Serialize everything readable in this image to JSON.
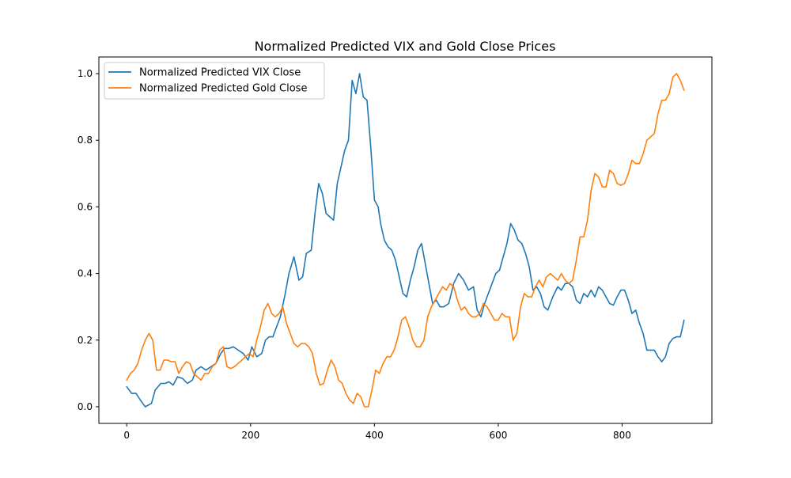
{
  "chart_data": {
    "type": "line",
    "title": "Normalized Predicted VIX and Gold Close Prices",
    "xlabel": "",
    "ylabel": "",
    "xlim": [
      -45,
      945
    ],
    "ylim": [
      -0.05,
      1.05
    ],
    "x_ticks": [
      0,
      200,
      400,
      600,
      800
    ],
    "y_ticks": [
      0.0,
      0.2,
      0.4,
      0.6,
      0.8,
      1.0
    ],
    "x_tick_labels": [
      "0",
      "200",
      "400",
      "600",
      "800"
    ],
    "y_tick_labels": [
      "0.0",
      "0.2",
      "0.4",
      "0.6",
      "0.8",
      "1.0"
    ],
    "grid": false,
    "legend_position": "top-left",
    "series": [
      {
        "name": "Normalized Predicted VIX Close",
        "color": "#1f77b4",
        "points": [
          [
            0,
            0.06
          ],
          [
            8,
            0.04
          ],
          [
            15,
            0.04
          ],
          [
            22,
            0.02
          ],
          [
            30,
            0.0
          ],
          [
            40,
            0.01
          ],
          [
            46,
            0.05
          ],
          [
            55,
            0.07
          ],
          [
            62,
            0.07
          ],
          [
            68,
            0.075
          ],
          [
            75,
            0.065
          ],
          [
            82,
            0.09
          ],
          [
            90,
            0.085
          ],
          [
            98,
            0.07
          ],
          [
            106,
            0.08
          ],
          [
            112,
            0.11
          ],
          [
            120,
            0.12
          ],
          [
            128,
            0.11
          ],
          [
            136,
            0.12
          ],
          [
            144,
            0.13
          ],
          [
            152,
            0.16
          ],
          [
            158,
            0.175
          ],
          [
            165,
            0.175
          ],
          [
            172,
            0.18
          ],
          [
            180,
            0.17
          ],
          [
            188,
            0.16
          ],
          [
            196,
            0.14
          ],
          [
            202,
            0.18
          ],
          [
            210,
            0.15
          ],
          [
            218,
            0.16
          ],
          [
            224,
            0.2
          ],
          [
            230,
            0.21
          ],
          [
            236,
            0.21
          ],
          [
            242,
            0.24
          ],
          [
            248,
            0.27
          ],
          [
            255,
            0.33
          ],
          [
            262,
            0.4
          ],
          [
            270,
            0.45
          ],
          [
            278,
            0.38
          ],
          [
            284,
            0.39
          ],
          [
            290,
            0.46
          ],
          [
            298,
            0.47
          ],
          [
            304,
            0.58
          ],
          [
            310,
            0.67
          ],
          [
            316,
            0.64
          ],
          [
            322,
            0.58
          ],
          [
            328,
            0.57
          ],
          [
            334,
            0.56
          ],
          [
            340,
            0.67
          ],
          [
            346,
            0.72
          ],
          [
            352,
            0.77
          ],
          [
            358,
            0.8
          ],
          [
            364,
            0.98
          ],
          [
            370,
            0.94
          ],
          [
            376,
            1.0
          ],
          [
            382,
            0.93
          ],
          [
            388,
            0.92
          ],
          [
            394,
            0.78
          ],
          [
            400,
            0.62
          ],
          [
            406,
            0.6
          ],
          [
            410,
            0.55
          ],
          [
            416,
            0.5
          ],
          [
            422,
            0.48
          ],
          [
            428,
            0.47
          ],
          [
            434,
            0.44
          ],
          [
            440,
            0.39
          ],
          [
            446,
            0.34
          ],
          [
            452,
            0.33
          ],
          [
            458,
            0.38
          ],
          [
            464,
            0.42
          ],
          [
            470,
            0.47
          ],
          [
            476,
            0.49
          ],
          [
            482,
            0.43
          ],
          [
            488,
            0.37
          ],
          [
            494,
            0.31
          ],
          [
            500,
            0.32
          ],
          [
            506,
            0.3
          ],
          [
            512,
            0.3
          ],
          [
            520,
            0.31
          ],
          [
            528,
            0.37
          ],
          [
            536,
            0.4
          ],
          [
            544,
            0.38
          ],
          [
            552,
            0.35
          ],
          [
            560,
            0.36
          ],
          [
            566,
            0.29
          ],
          [
            572,
            0.27
          ],
          [
            578,
            0.31
          ],
          [
            584,
            0.34
          ],
          [
            590,
            0.37
          ],
          [
            596,
            0.4
          ],
          [
            602,
            0.41
          ],
          [
            608,
            0.45
          ],
          [
            614,
            0.49
          ],
          [
            620,
            0.55
          ],
          [
            626,
            0.53
          ],
          [
            632,
            0.5
          ],
          [
            638,
            0.49
          ],
          [
            644,
            0.46
          ],
          [
            650,
            0.42
          ],
          [
            656,
            0.35
          ],
          [
            662,
            0.36
          ],
          [
            668,
            0.34
          ],
          [
            674,
            0.3
          ],
          [
            680,
            0.29
          ],
          [
            688,
            0.33
          ],
          [
            696,
            0.36
          ],
          [
            702,
            0.35
          ],
          [
            708,
            0.37
          ],
          [
            714,
            0.37
          ],
          [
            720,
            0.36
          ],
          [
            726,
            0.32
          ],
          [
            732,
            0.31
          ],
          [
            738,
            0.34
          ],
          [
            744,
            0.33
          ],
          [
            750,
            0.35
          ],
          [
            756,
            0.33
          ],
          [
            762,
            0.36
          ],
          [
            768,
            0.35
          ],
          [
            774,
            0.33
          ],
          [
            780,
            0.31
          ],
          [
            786,
            0.305
          ],
          [
            792,
            0.33
          ],
          [
            798,
            0.35
          ],
          [
            804,
            0.35
          ],
          [
            810,
            0.32
          ],
          [
            816,
            0.28
          ],
          [
            822,
            0.29
          ],
          [
            828,
            0.25
          ],
          [
            834,
            0.22
          ],
          [
            840,
            0.17
          ],
          [
            846,
            0.17
          ],
          [
            852,
            0.17
          ],
          [
            858,
            0.15
          ],
          [
            864,
            0.135
          ],
          [
            870,
            0.15
          ],
          [
            876,
            0.19
          ],
          [
            882,
            0.205
          ],
          [
            888,
            0.21
          ],
          [
            894,
            0.21
          ],
          [
            900,
            0.26
          ]
        ]
      },
      {
        "name": "Normalized Predicted Gold Close",
        "color": "#ff7f0e",
        "points": [
          [
            0,
            0.08
          ],
          [
            6,
            0.1
          ],
          [
            12,
            0.11
          ],
          [
            18,
            0.13
          ],
          [
            24,
            0.17
          ],
          [
            30,
            0.2
          ],
          [
            36,
            0.22
          ],
          [
            42,
            0.2
          ],
          [
            48,
            0.11
          ],
          [
            54,
            0.11
          ],
          [
            60,
            0.14
          ],
          [
            66,
            0.14
          ],
          [
            72,
            0.135
          ],
          [
            78,
            0.135
          ],
          [
            84,
            0.1
          ],
          [
            90,
            0.12
          ],
          [
            96,
            0.135
          ],
          [
            102,
            0.13
          ],
          [
            108,
            0.1
          ],
          [
            114,
            0.09
          ],
          [
            120,
            0.08
          ],
          [
            126,
            0.1
          ],
          [
            132,
            0.1
          ],
          [
            138,
            0.12
          ],
          [
            144,
            0.13
          ],
          [
            150,
            0.17
          ],
          [
            156,
            0.18
          ],
          [
            162,
            0.12
          ],
          [
            168,
            0.115
          ],
          [
            174,
            0.12
          ],
          [
            180,
            0.13
          ],
          [
            186,
            0.14
          ],
          [
            192,
            0.15
          ],
          [
            198,
            0.16
          ],
          [
            204,
            0.15
          ],
          [
            210,
            0.2
          ],
          [
            216,
            0.24
          ],
          [
            222,
            0.29
          ],
          [
            228,
            0.31
          ],
          [
            234,
            0.28
          ],
          [
            240,
            0.27
          ],
          [
            246,
            0.28
          ],
          [
            252,
            0.3
          ],
          [
            258,
            0.25
          ],
          [
            264,
            0.22
          ],
          [
            270,
            0.19
          ],
          [
            276,
            0.18
          ],
          [
            282,
            0.19
          ],
          [
            288,
            0.19
          ],
          [
            294,
            0.18
          ],
          [
            300,
            0.16
          ],
          [
            306,
            0.1
          ],
          [
            312,
            0.065
          ],
          [
            318,
            0.07
          ],
          [
            324,
            0.11
          ],
          [
            330,
            0.14
          ],
          [
            336,
            0.12
          ],
          [
            342,
            0.08
          ],
          [
            348,
            0.07
          ],
          [
            354,
            0.04
          ],
          [
            360,
            0.02
          ],
          [
            366,
            0.01
          ],
          [
            372,
            0.04
          ],
          [
            378,
            0.03
          ],
          [
            384,
            0.0
          ],
          [
            390,
            0.0
          ],
          [
            396,
            0.05
          ],
          [
            402,
            0.11
          ],
          [
            408,
            0.1
          ],
          [
            414,
            0.13
          ],
          [
            420,
            0.15
          ],
          [
            426,
            0.15
          ],
          [
            432,
            0.17
          ],
          [
            438,
            0.21
          ],
          [
            444,
            0.26
          ],
          [
            450,
            0.27
          ],
          [
            456,
            0.24
          ],
          [
            462,
            0.2
          ],
          [
            468,
            0.18
          ],
          [
            474,
            0.18
          ],
          [
            480,
            0.2
          ],
          [
            486,
            0.27
          ],
          [
            492,
            0.3
          ],
          [
            498,
            0.32
          ],
          [
            504,
            0.34
          ],
          [
            510,
            0.36
          ],
          [
            516,
            0.35
          ],
          [
            522,
            0.37
          ],
          [
            528,
            0.36
          ],
          [
            534,
            0.32
          ],
          [
            540,
            0.29
          ],
          [
            546,
            0.3
          ],
          [
            552,
            0.28
          ],
          [
            558,
            0.27
          ],
          [
            564,
            0.27
          ],
          [
            570,
            0.28
          ],
          [
            576,
            0.31
          ],
          [
            582,
            0.3
          ],
          [
            588,
            0.28
          ],
          [
            594,
            0.26
          ],
          [
            600,
            0.26
          ],
          [
            606,
            0.28
          ],
          [
            612,
            0.27
          ],
          [
            618,
            0.27
          ],
          [
            624,
            0.2
          ],
          [
            630,
            0.22
          ],
          [
            636,
            0.3
          ],
          [
            642,
            0.34
          ],
          [
            648,
            0.33
          ],
          [
            654,
            0.33
          ],
          [
            660,
            0.36
          ],
          [
            666,
            0.38
          ],
          [
            672,
            0.36
          ],
          [
            678,
            0.39
          ],
          [
            684,
            0.4
          ],
          [
            690,
            0.39
          ],
          [
            696,
            0.38
          ],
          [
            702,
            0.4
          ],
          [
            708,
            0.38
          ],
          [
            714,
            0.37
          ],
          [
            720,
            0.38
          ],
          [
            726,
            0.44
          ],
          [
            732,
            0.51
          ],
          [
            738,
            0.51
          ],
          [
            744,
            0.56
          ],
          [
            750,
            0.65
          ],
          [
            756,
            0.7
          ],
          [
            762,
            0.69
          ],
          [
            768,
            0.66
          ],
          [
            774,
            0.66
          ],
          [
            780,
            0.71
          ],
          [
            786,
            0.7
          ],
          [
            792,
            0.67
          ],
          [
            798,
            0.665
          ],
          [
            804,
            0.67
          ],
          [
            810,
            0.7
          ],
          [
            816,
            0.74
          ],
          [
            822,
            0.73
          ],
          [
            828,
            0.73
          ],
          [
            834,
            0.76
          ],
          [
            840,
            0.8
          ],
          [
            846,
            0.81
          ],
          [
            852,
            0.82
          ],
          [
            858,
            0.88
          ],
          [
            864,
            0.92
          ],
          [
            870,
            0.92
          ],
          [
            876,
            0.94
          ],
          [
            882,
            0.99
          ],
          [
            888,
            1.0
          ],
          [
            894,
            0.98
          ],
          [
            900,
            0.95
          ]
        ]
      }
    ]
  }
}
